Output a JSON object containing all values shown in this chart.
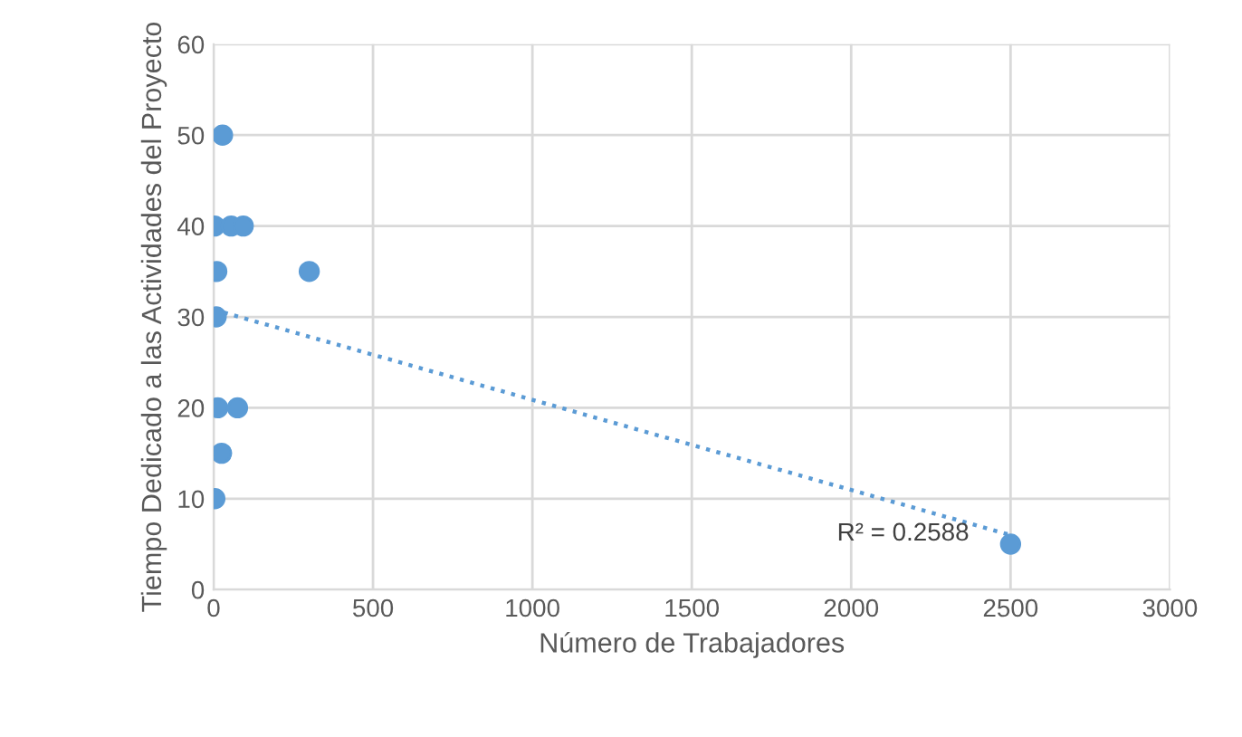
{
  "chart_data": {
    "type": "scatter",
    "xlabel": "Número de Trabajadores",
    "ylabel": "Tiempo Dedicado a las Actividades del Proyecto",
    "xlim": [
      0,
      3000
    ],
    "xticks": [
      0,
      500,
      1000,
      1500,
      2000,
      2500,
      3000
    ],
    "ylim": [
      0,
      60
    ],
    "yticks": [
      0,
      10,
      20,
      30,
      40,
      50,
      60
    ],
    "grid": true,
    "series": [
      {
        "marker": "circle",
        "color": "#5b9bd5",
        "x": [
          28,
          3,
          55,
          93,
          10,
          300,
          8,
          13,
          75,
          25,
          4,
          2500
        ],
        "values": [
          50,
          40,
          40,
          40,
          35,
          35,
          30,
          20,
          20,
          15,
          10,
          5
        ]
      },
      {
        "type": "line",
        "color": "#5b9bd5",
        "line_style": "dotted",
        "x": [
          0,
          2500
        ],
        "values": [
          30.8,
          6
        ]
      }
    ],
    "annotations": [
      "R² = 0.2588"
    ]
  }
}
